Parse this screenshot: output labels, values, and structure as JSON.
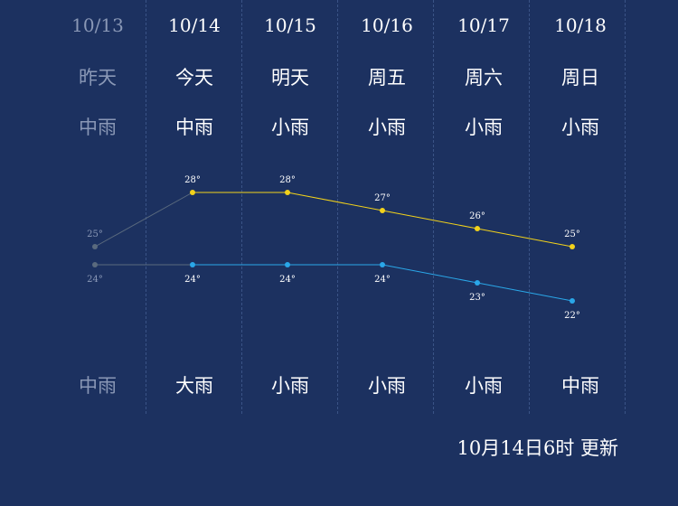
{
  "forecast": [
    {
      "date": "10/13",
      "day": "昨天",
      "weather_day": "中雨",
      "weather_night": "中雨",
      "high": 25,
      "low": 24,
      "high_label": "25°",
      "low_label": "24°",
      "past": true
    },
    {
      "date": "10/14",
      "day": "今天",
      "weather_day": "中雨",
      "weather_night": "大雨",
      "high": 28,
      "low": 24,
      "high_label": "28°",
      "low_label": "24°",
      "past": false
    },
    {
      "date": "10/15",
      "day": "明天",
      "weather_day": "小雨",
      "weather_night": "小雨",
      "high": 28,
      "low": 24,
      "high_label": "28°",
      "low_label": "24°",
      "past": false
    },
    {
      "date": "10/16",
      "day": "周五",
      "weather_day": "小雨",
      "weather_night": "小雨",
      "high": 27,
      "low": 24,
      "high_label": "27°",
      "low_label": "24°",
      "past": false
    },
    {
      "date": "10/17",
      "day": "周六",
      "weather_day": "小雨",
      "weather_night": "小雨",
      "high": 26,
      "low": 23,
      "high_label": "26°",
      "low_label": "23°",
      "past": false
    },
    {
      "date": "10/18",
      "day": "周日",
      "weather_day": "小雨",
      "weather_night": "中雨",
      "high": 25,
      "low": 22,
      "high_label": "25°",
      "low_label": "22°",
      "past": false
    }
  ],
  "updated_text": "10月14日6时 更新",
  "colors": {
    "high_line": "#f2d21b",
    "low_line": "#2aa7e8",
    "past_line": "#5a6a7e",
    "background": "#1c3160"
  }
}
